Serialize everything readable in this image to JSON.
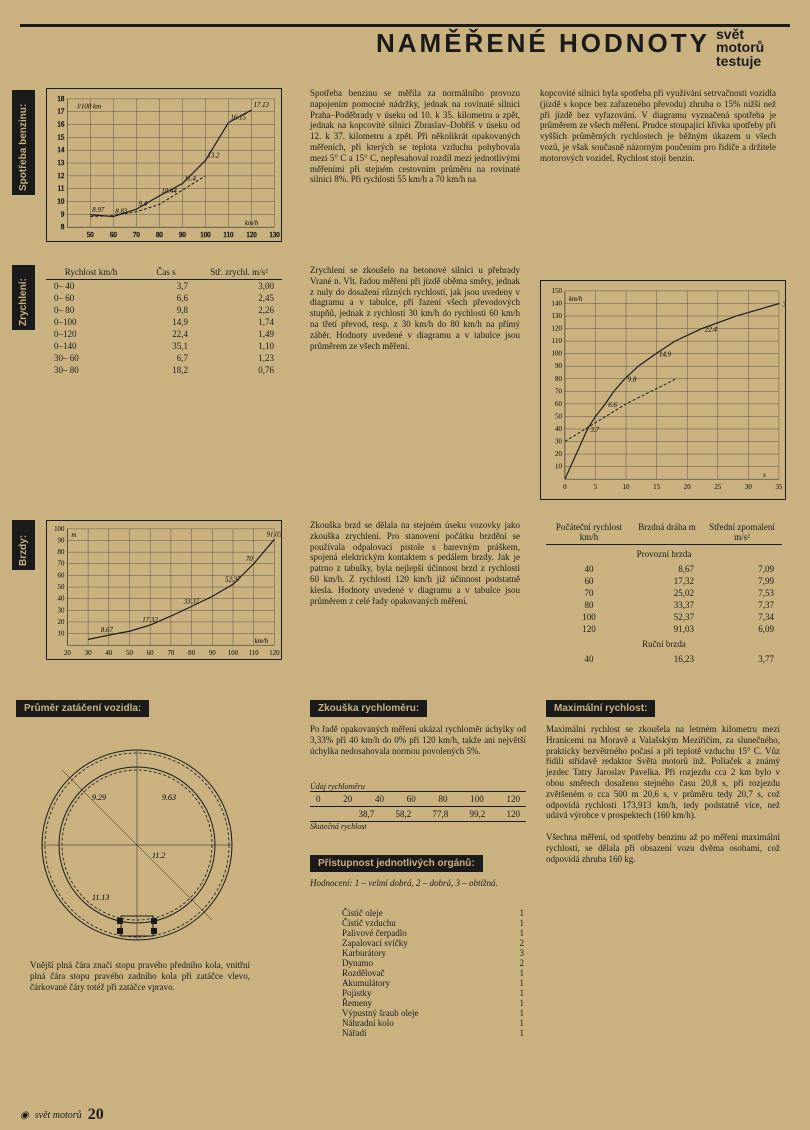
{
  "page": {
    "title": "NAMĚŘENÉ HODNOTY",
    "logo_lines": [
      "svět",
      "motorů",
      "testuje"
    ],
    "footer_text": "svět motorů",
    "page_number": "20"
  },
  "fuel_chart": {
    "tab": "Spotřeba benzinu:",
    "type": "line",
    "xlim": [
      40,
      130
    ],
    "xticks": [
      50,
      60,
      70,
      80,
      90,
      100,
      110,
      120,
      130
    ],
    "ylim": [
      8,
      18
    ],
    "yticks": [
      8,
      9,
      10,
      11,
      12,
      13,
      14,
      15,
      16,
      17,
      18
    ],
    "x_unit": "km/h",
    "y_unit": "l/100 km",
    "series": [
      {
        "label": "hilly",
        "points": [
          [
            50,
            8.97
          ],
          [
            60,
            8.83
          ],
          [
            70,
            9.4
          ],
          [
            80,
            10.44
          ],
          [
            90,
            11.4
          ],
          [
            100,
            13.2
          ],
          [
            110,
            16.15
          ],
          [
            120,
            17.13
          ]
        ]
      },
      {
        "label": "flat",
        "points": [
          [
            50,
            8.83
          ],
          [
            60,
            8.9
          ],
          [
            70,
            9.2
          ],
          [
            80,
            9.77
          ],
          [
            100,
            12.0
          ]
        ],
        "dashed": true
      }
    ],
    "callouts": [
      "16.15",
      "17.13",
      "10.44",
      "9.77",
      "8.97",
      "8.83"
    ],
    "line_color": "#1a1a1a",
    "grid_color": "#1a1a1a",
    "background_color": "#c9b280"
  },
  "accel": {
    "tab": "Zrychlení:",
    "table_headers": [
      "Rychlost km/h",
      "Čas s",
      "Stř. zrychl. m/s²"
    ],
    "rows": [
      [
        "0– 40",
        "3,7",
        "3,00"
      ],
      [
        "0– 60",
        "6,6",
        "2,45"
      ],
      [
        "0– 80",
        "9,8",
        "2,26"
      ],
      [
        "0–100",
        "14,9",
        "1,74"
      ],
      [
        "0–120",
        "22,4",
        "1,49"
      ],
      [
        "0–140",
        "35,1",
        "1,10"
      ],
      [
        "30– 60",
        "6,7",
        "1,23"
      ],
      [
        "30– 80",
        "18,2",
        "0,76"
      ]
    ],
    "chart": {
      "type": "line",
      "xlim": [
        0,
        35
      ],
      "xticks": [
        0,
        5,
        10,
        15,
        20,
        25,
        30,
        35
      ],
      "ylim": [
        0,
        150
      ],
      "yticks": [
        10,
        20,
        30,
        40,
        50,
        60,
        70,
        80,
        90,
        100,
        110,
        120,
        130,
        140,
        150
      ],
      "x_unit": "s",
      "y_unit": "km/h",
      "series": [
        {
          "label": "gears",
          "points": [
            [
              0,
              0
            ],
            [
              3.7,
              40
            ],
            [
              5,
              50
            ],
            [
              6.6,
              60
            ],
            [
              8,
              70
            ],
            [
              9.8,
              80
            ],
            [
              12,
              90
            ],
            [
              14.9,
              100
            ],
            [
              18,
              110
            ],
            [
              22.4,
              120
            ],
            [
              28,
              130
            ],
            [
              35.1,
              140
            ]
          ]
        },
        {
          "label": "direct",
          "points": [
            [
              0,
              30
            ],
            [
              5,
              45
            ],
            [
              10,
              60
            ],
            [
              18.2,
              80
            ]
          ],
          "dashed": true
        }
      ],
      "callouts": [
        "3.7",
        "6.6",
        "9.8",
        "14.9",
        "18.2",
        "22.4",
        "35.1",
        "6.7",
        "5 převod"
      ],
      "line_color": "#1a1a1a"
    }
  },
  "brakes": {
    "tab": "Brzdy:",
    "chart": {
      "type": "line",
      "xlim": [
        20,
        120
      ],
      "xticks": [
        20,
        30,
        40,
        50,
        60,
        70,
        80,
        90,
        100,
        110,
        120
      ],
      "ylim": [
        0,
        100
      ],
      "yticks": [
        10,
        20,
        30,
        40,
        50,
        60,
        70,
        80,
        90,
        100
      ],
      "x_unit": "km/h",
      "y_unit": "m",
      "series": [
        {
          "label": "stop",
          "points": [
            [
              30,
              5
            ],
            [
              40,
              8.67
            ],
            [
              50,
              12
            ],
            [
              60,
              17.32
            ],
            [
              70,
              25.02
            ],
            [
              80,
              33.37
            ],
            [
              90,
              42
            ],
            [
              100,
              52.37
            ],
            [
              110,
              70
            ],
            [
              120,
              91.03
            ]
          ]
        }
      ],
      "callouts": [
        "8.67",
        "16.23",
        "17.32",
        "25.02",
        "33.37",
        "52.37",
        "91.03"
      ],
      "line_color": "#1a1a1a"
    },
    "table_headers": [
      "Počáteční rychlost km/h",
      "Brzdná dráha m",
      "Střední zpomalení m/s²"
    ],
    "service_label": "Provozní brzda",
    "hand_label": "Ruční brzda",
    "rows": [
      [
        "40",
        "8,67",
        "7,09"
      ],
      [
        "60",
        "17,32",
        "7,99"
      ],
      [
        "70",
        "25,02",
        "7,53"
      ],
      [
        "80",
        "33,37",
        "7,37"
      ],
      [
        "100",
        "52,37",
        "7,34"
      ],
      [
        "120",
        "91,03",
        "6,09"
      ]
    ],
    "hand_rows": [
      [
        "40",
        "16,23",
        "3,77"
      ]
    ]
  },
  "turning": {
    "tab": "Průměr zatáčení vozidla:",
    "diameters": [
      "9.29",
      "9.63",
      "11.2",
      "11.13"
    ],
    "caption": "Vnější plná čára značí stopu pravého předního kola, vnitřní plná čára stopu pravého zadního kola při zatáčce vlevo, čárkované čáry totéž při zatáčce vpravo."
  },
  "speedtest": {
    "tab": "Zkouška rychloměru:",
    "text": "Po řadě opakovaných měření ukázal rychloměr úchylky od 3,33% při 40 km/h do 0% při 120 km/h, takže ani největší úchylka nedosahovala normou povolených 5%.",
    "label_ind": "Údaj rychloměru",
    "label_true": "Skutečná rychlost",
    "indicated": [
      "0",
      "20",
      "40",
      "60",
      "80",
      "100",
      "120"
    ],
    "true": [
      "",
      "",
      "38,7",
      "58,2",
      "77,8",
      "99,2",
      "120"
    ]
  },
  "access": {
    "tab": "Přístupnost jednotlivých orgánů:",
    "legend": "Hodnocení:   1 – velmi dobrá,   2 – dobrá,   3 – obtížná.",
    "items": [
      [
        "Čistič oleje",
        "1"
      ],
      [
        "Čistič vzduchu",
        "1"
      ],
      [
        "Palivové čerpadlo",
        "1"
      ],
      [
        "Zapalovací svíčky",
        "2"
      ],
      [
        "Karburátory",
        "3"
      ],
      [
        "Dynamo",
        "2"
      ],
      [
        "Rozdělovač",
        "1"
      ],
      [
        "Akumulátory",
        "1"
      ],
      [
        "Pojistky",
        "1"
      ],
      [
        "Řemeny",
        "1"
      ],
      [
        "Výpustný šraub oleje",
        "1"
      ],
      [
        "Náhradní kolo",
        "1"
      ],
      [
        "Nářadí",
        "1"
      ]
    ]
  },
  "maxspeed": {
    "tab": "Maximální rychlost:",
    "text": "Maximální rychlost se zkoušela na letmém kilometru mezi Hranicemi na Moravě a Valašským Meziříčím, za slunečného, prakticky bezvětrného počasí a při teplotě vzduchu 15° C. Vůz řídili střídavě redaktor Světa motorů inž. Poliaček a známý jezdec Tatry Jaroslav Pavelka. Při rozjezdu cca 2 km bylo v obou směrech dosaženo stejného času 20,8 s, při rozjezdu zvětšeném o cca 500 m 20,6 s, v průměru tedy 20,7 s, což odpovídá rychlosti 173,913 km/h, tedy podstatně více, než udává výrobce v prospektech (160 km/h).\n\nVšechna měření, od spotřeby benzinu až po měření maximální rychlosti, se dělala při obsazení vozu dvěma osobami, což odpovídá zhruba 160 kg."
  },
  "paragraphs": {
    "fuel1": "Spotřeba benzinu se měřila za normálního provozu napojením pomocné nádržky, jednak na rovinaté silnici Praha–Poděbrady v úseku od 10. k 35. kilometru a zpět, jednak na kopcovité silnici Zbraslav–Dobříš v úseku od 12. k 37. kilometru a zpět. Při několikrát opakovaných měřeních, při kterých se teplota vzduchu pohybovala mezi 5° C a 15° C, nepřesahoval rozdíl mezi jednotlivými měřeními při stejném cestovním průměru na rovinaté silnici 8%. Při rychlosti 55 km/h a 70 km/h na",
    "fuel2": "kopcovité silnici byla spotřeba při využívání setrvačnosti vozidla (jízdě s kopce bez zařazeného převodu) zhruba o 15% nižší než při jízdě bez vyřazování.\n\nV diagramu vyznačená spotřeba je průměrem ze všech měření. Prudce stoupající křivka spotřeby při vyšších průměrných rychlostech je běžným úkazem u všech vozů, je však současně názorným poučením pro řidiče a držitele motorových vozidel. Rychlost stojí benzin.",
    "accel": "Zrychlení se zkoušelo na betonové silnici u přehrady Vrané n. Vlt. řadou měření při jízdě oběma směry, jednak z nuly do dosažení různých rychlostí, jak jsou uvedeny v diagramu a v tabulce, při řazení všech převodových stupňů, jednak z rychlosti 30 km/h do rychlosti 60 km/h na třetí převod, resp. z 30 km/h do 80 km/h na přímý záběr. Hodnoty uvedené v diagramu a v tabulce jsou průměrem ze všech měření.",
    "brakes": "Zkouška brzd se dělala na stejném úseku vozovky jako zkouška zrychlení. Pro stanovení počátku brzdění se používala odpalovací pistole s barevným práškem, spojená elektrickým kontaktem s pedálem brzdy. Jak je patrno z tabulky, byla nejlepší účinnost brzd z rychlosti 60 km/h. Z rychlosti 120 km/h již účinnost podstatně klesla. Hodnoty uvedené v diagramu a v tabulce jsou průměrem z celé řady opakovaných měření."
  }
}
